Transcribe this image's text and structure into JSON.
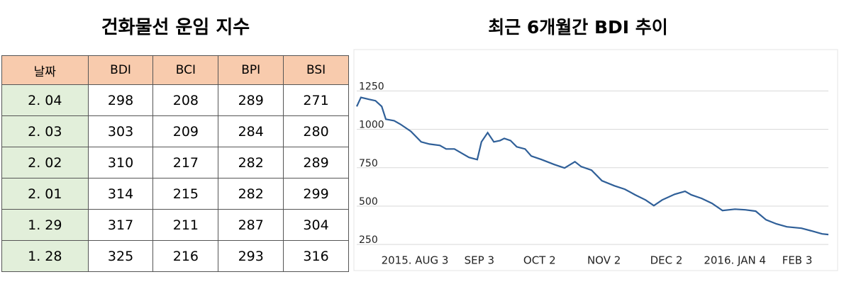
{
  "table": {
    "title": "건화물선 운임 지수",
    "header": [
      "날짜",
      "BDI",
      "BCI",
      "BPI",
      "BSI"
    ],
    "rows": [
      [
        "2. 04",
        "298",
        "208",
        "289",
        "271"
      ],
      [
        "2. 03",
        "303",
        "209",
        "284",
        "280"
      ],
      [
        "2. 02",
        "310",
        "217",
        "282",
        "289"
      ],
      [
        "2. 01",
        "314",
        "215",
        "282",
        "299"
      ],
      [
        "1. 29",
        "317",
        "211",
        "287",
        "304"
      ],
      [
        "1. 28",
        "325",
        "216",
        "293",
        "316"
      ]
    ]
  },
  "chart_data": {
    "type": "line",
    "title": "최근 6개월간 BDI 추이",
    "x": [
      "2015-07-06",
      "2015-07-08",
      "2015-07-12",
      "2015-07-15",
      "2015-07-18",
      "2015-07-20",
      "2015-07-24",
      "2015-07-27",
      "2015-08-01",
      "2015-08-06",
      "2015-08-10",
      "2015-08-15",
      "2015-08-18",
      "2015-08-22",
      "2015-08-29",
      "2015-09-02",
      "2015-09-04",
      "2015-09-07",
      "2015-09-10",
      "2015-09-13",
      "2015-09-15",
      "2015-09-18",
      "2015-09-21",
      "2015-09-25",
      "2015-09-28",
      "2015-10-03",
      "2015-10-09",
      "2015-10-14",
      "2015-10-19",
      "2015-10-22",
      "2015-10-27",
      "2015-11-01",
      "2015-11-07",
      "2015-11-12",
      "2015-11-17",
      "2015-11-22",
      "2015-11-26",
      "2015-11-30",
      "2015-12-06",
      "2015-12-11",
      "2015-12-14",
      "2015-12-19",
      "2015-12-24",
      "2015-12-29",
      "2016-01-04",
      "2016-01-09",
      "2016-01-14",
      "2016-01-19",
      "2016-01-24",
      "2016-01-29",
      "2016-02-05",
      "2016-02-10",
      "2016-02-15",
      "2016-02-18"
    ],
    "series": [
      {
        "name": "BDI",
        "color": "#2f5f98",
        "values": [
          1149,
          1208,
          1195,
          1186,
          1149,
          1066,
          1056,
          1033,
          987,
          918,
          904,
          895,
          872,
          872,
          817,
          803,
          918,
          978,
          918,
          927,
          941,
          927,
          886,
          872,
          826,
          803,
          771,
          748,
          789,
          757,
          734,
          665,
          632,
          610,
          573,
          540,
          503,
          540,
          577,
          596,
          573,
          550,
          518,
          471,
          480,
          476,
          467,
          411,
          384,
          365,
          356,
          338,
          319,
          315
        ]
      }
    ],
    "xlim": [
      "2015-07-06",
      "2016-02-18"
    ],
    "xticks": [
      {
        "value": "2015-08-03",
        "label": "2015. AUG 3"
      },
      {
        "value": "2015-09-03",
        "label": "SEP 3"
      },
      {
        "value": "2015-10-02",
        "label": "OCT 2"
      },
      {
        "value": "2015-11-02",
        "label": "NOV 2"
      },
      {
        "value": "2015-12-02",
        "label": "DEC 2"
      },
      {
        "value": "2016-01-04",
        "label": "2016. JAN 4"
      },
      {
        "value": "2016-02-03",
        "label": "FEB 3"
      }
    ],
    "ylim": [
      200,
      1450
    ],
    "yticks": [
      250,
      500,
      750,
      1000,
      1250
    ],
    "grid": true
  }
}
